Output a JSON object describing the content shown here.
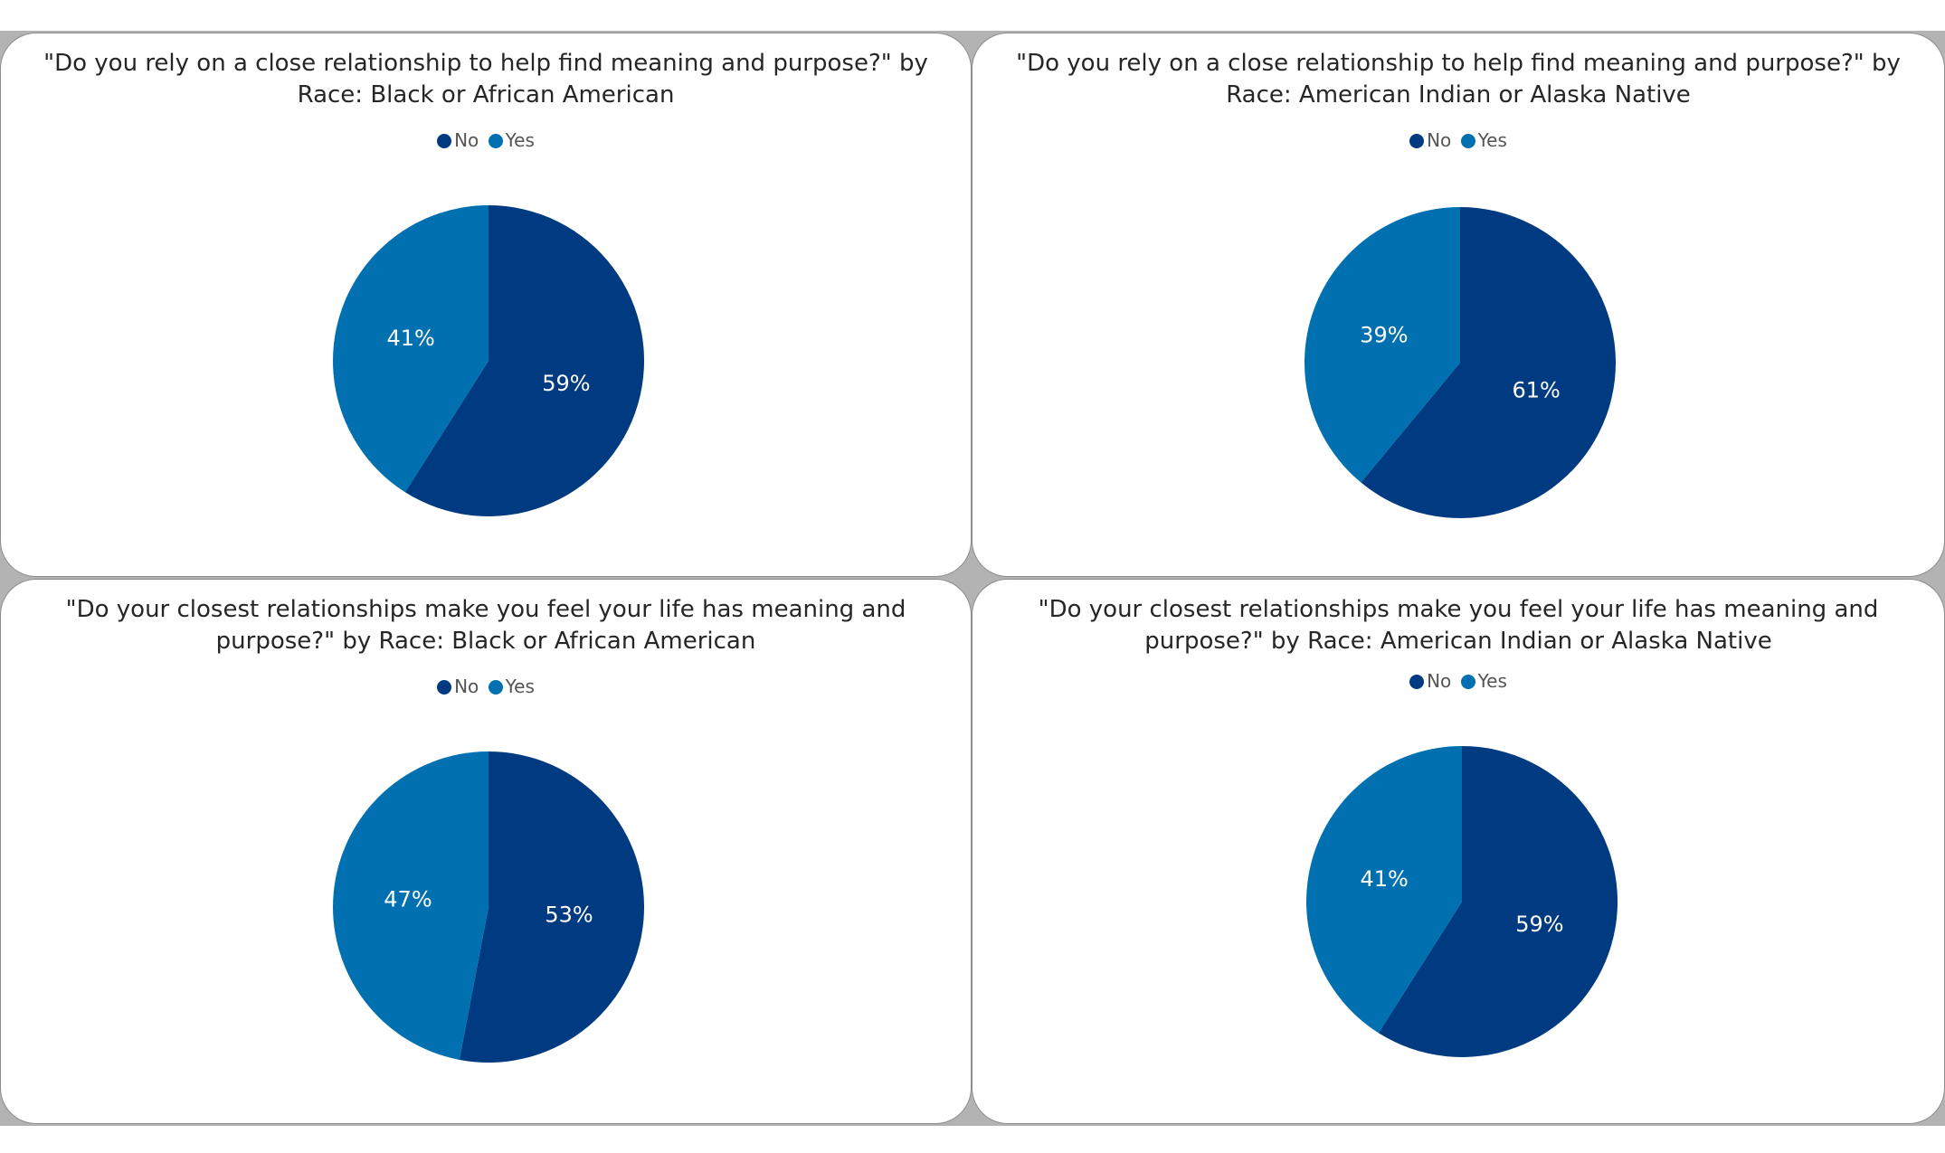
{
  "colors": {
    "no": "#003a80",
    "yes": "#0070b0"
  },
  "legend": {
    "no_label": "No",
    "yes_label": "Yes"
  },
  "chart_data": [
    {
      "type": "pie",
      "title": "\"Do you rely on a close relationship to help find meaning and purpose?\" by Race: Black or African American",
      "categories": [
        "No",
        "Yes"
      ],
      "values": [
        59,
        41
      ],
      "labels": [
        "59%",
        "41%"
      ],
      "legend_position": "top"
    },
    {
      "type": "pie",
      "title": "\"Do you rely on a close relationship to help find meaning and purpose?\" by Race: American Indian or Alaska Native",
      "categories": [
        "No",
        "Yes"
      ],
      "values": [
        61,
        39
      ],
      "labels": [
        "61%",
        "39%"
      ],
      "legend_position": "top"
    },
    {
      "type": "pie",
      "title": "\"Do your closest relationships make you feel your life has meaning and purpose?\" by Race: Black or African American",
      "categories": [
        "No",
        "Yes"
      ],
      "values": [
        53,
        47
      ],
      "labels": [
        "53%",
        "47%"
      ],
      "legend_position": "top"
    },
    {
      "type": "pie",
      "title": "\"Do your closest relationships make you feel your life has meaning and purpose?\" by Race: American Indian or Alaska Native",
      "categories": [
        "No",
        "Yes"
      ],
      "values": [
        59,
        41
      ],
      "labels": [
        "59%",
        "41%"
      ],
      "legend_position": "top"
    }
  ]
}
